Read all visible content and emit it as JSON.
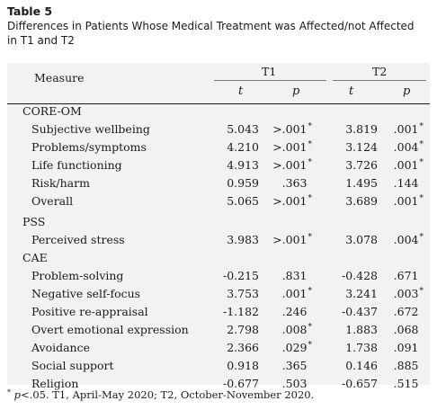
{
  "title": {
    "label": "Table 5",
    "caption_line1": "Differences in Patients Whose Medical Treatment was Affected/not Affected",
    "caption_line2": "in T1 and T2"
  },
  "header": {
    "measure": "Measure",
    "t1": "T1",
    "t2": "T2",
    "t_symbol": "t",
    "p_symbol": "p"
  },
  "sections": [
    {
      "name": "CORE-OM",
      "rows": [
        {
          "label": "Subjective wellbeing",
          "t1_t": "5.043",
          "t1_p": ">.001",
          "t1_sig": true,
          "t2_t": "3.819",
          "t2_p": ".001",
          "t2_sig": true
        },
        {
          "label": "Problems/symptoms",
          "t1_t": "4.210",
          "t1_p": ">.001",
          "t1_sig": true,
          "t2_t": "3.124",
          "t2_p": ".004",
          "t2_sig": true
        },
        {
          "label": "Life functioning",
          "t1_t": "4.913",
          "t1_p": ">.001",
          "t1_sig": true,
          "t2_t": "3.726",
          "t2_p": ".001",
          "t2_sig": true
        },
        {
          "label": "Risk/harm",
          "t1_t": "0.959",
          "t1_p": ".363",
          "t1_sig": false,
          "t2_t": "1.495",
          "t2_p": ".144",
          "t2_sig": false
        },
        {
          "label": "Overall",
          "t1_t": "5.065",
          "t1_p": ">.001",
          "t1_sig": true,
          "t2_t": "3.689",
          "t2_p": ".001",
          "t2_sig": true
        }
      ]
    },
    {
      "name": "PSS",
      "rows": [
        {
          "label": "Perceived stress",
          "t1_t": "3.983",
          "t1_p": ">.001",
          "t1_sig": true,
          "t2_t": "3.078",
          "t2_p": ".004",
          "t2_sig": true
        }
      ]
    },
    {
      "name": "CAE",
      "rows": [
        {
          "label": "Problem-solving",
          "t1_t": "-0.215",
          "t1_p": ".831",
          "t1_sig": false,
          "t2_t": "-0.428",
          "t2_p": ".671",
          "t2_sig": false
        },
        {
          "label": "Negative self-focus",
          "t1_t": "3.753",
          "t1_p": ".001",
          "t1_sig": true,
          "t2_t": "3.241",
          "t2_p": ".003",
          "t2_sig": true
        },
        {
          "label": "Positive re-appraisal",
          "t1_t": "-1.182",
          "t1_p": ".246",
          "t1_sig": false,
          "t2_t": "-0.437",
          "t2_p": ".672",
          "t2_sig": false
        },
        {
          "label": "Overt emotional expression",
          "t1_t": "2.798",
          "t1_p": ".008",
          "t1_sig": true,
          "t2_t": "1.883",
          "t2_p": ".068",
          "t2_sig": false
        },
        {
          "label": "Avoidance",
          "t1_t": "2.366",
          "t1_p": ".029",
          "t1_sig": true,
          "t2_t": "1.738",
          "t2_p": ".091",
          "t2_sig": false
        },
        {
          "label": "Social support",
          "t1_t": "0.918",
          "t1_p": ".365",
          "t1_sig": false,
          "t2_t": "0.146",
          "t2_p": ".885",
          "t2_sig": false
        },
        {
          "label": "Religion",
          "t1_t": "-0.677",
          "t1_p": ".503",
          "t1_sig": false,
          "t2_t": "-0.657",
          "t2_p": ".515",
          "t2_sig": false
        }
      ]
    }
  ],
  "footnote": {
    "star": "*",
    "p_symbol": "p",
    "text": "<.05. T1, April-May 2020; T2, October-November 2020."
  }
}
